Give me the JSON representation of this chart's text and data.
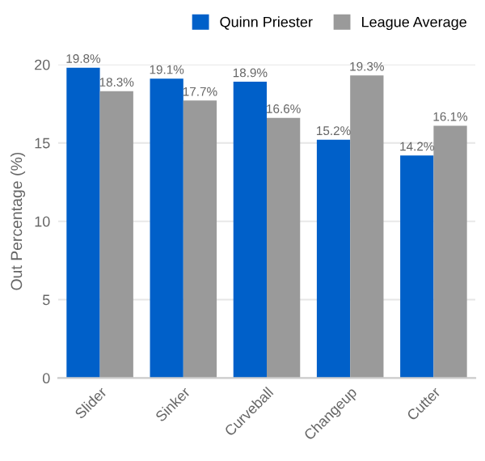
{
  "chart_data": {
    "type": "bar",
    "ylabel": "Out Percentage (%)",
    "categories": [
      "Slider",
      "Sinker",
      "Curveball",
      "Changeup",
      "Cutter"
    ],
    "series": [
      {
        "name": "Quinn Priester",
        "color": "#0060c9",
        "values": [
          19.8,
          19.1,
          18.9,
          15.2,
          14.2
        ],
        "value_labels": [
          "19.8%",
          "19.1%",
          "18.9%",
          "15.2%",
          "14.2%"
        ]
      },
      {
        "name": "League Average",
        "color": "#9a9a9a",
        "values": [
          18.3,
          17.7,
          16.6,
          19.3,
          16.1
        ],
        "value_labels": [
          "18.3%",
          "17.7%",
          "16.6%",
          "19.3%",
          "16.1%"
        ]
      }
    ],
    "ylim": [
      0,
      20
    ],
    "yticks": [
      0,
      5,
      10,
      15,
      20
    ],
    "grid": "y",
    "legend": "top right"
  }
}
